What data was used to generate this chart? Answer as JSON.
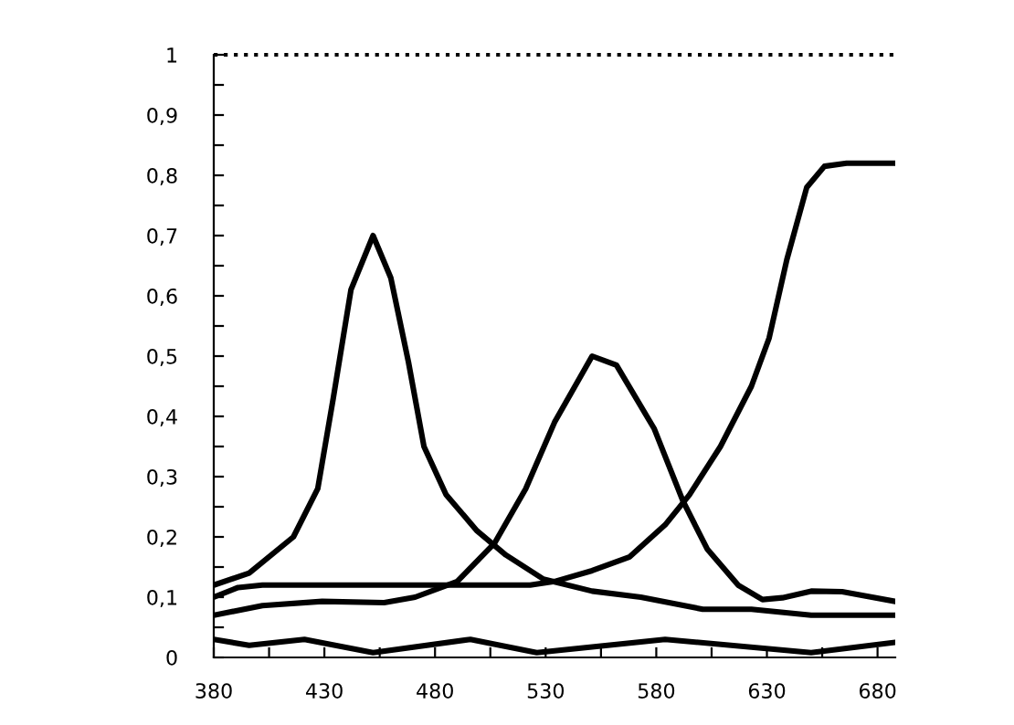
{
  "chart_data": {
    "type": "line",
    "xlim": [
      380,
      688
    ],
    "ylim": [
      0,
      1
    ],
    "xticks": [
      380,
      {
        "value": 405,
        "label": null
      },
      430,
      {
        "value": 455,
        "label": null
      },
      480,
      {
        "value": 505,
        "label": null
      },
      530,
      {
        "value": 555,
        "label": null
      },
      580,
      {
        "value": 605,
        "label": null
      },
      630,
      {
        "value": 655,
        "label": null
      },
      680
    ],
    "yticks": [
      {
        "value": 0,
        "label": "0"
      },
      {
        "value": 0.05,
        "label": null
      },
      {
        "value": 0.1,
        "label": "0,1"
      },
      {
        "value": 0.15,
        "label": null
      },
      {
        "value": 0.2,
        "label": "0,2"
      },
      {
        "value": 0.25,
        "label": null
      },
      {
        "value": 0.3,
        "label": "0,3"
      },
      {
        "value": 0.35,
        "label": null
      },
      {
        "value": 0.4,
        "label": "0,4"
      },
      {
        "value": 0.45,
        "label": null
      },
      {
        "value": 0.5,
        "label": "0,5"
      },
      {
        "value": 0.55,
        "label": null
      },
      {
        "value": 0.6,
        "label": "0,6"
      },
      {
        "value": 0.65,
        "label": null
      },
      {
        "value": 0.7,
        "label": "0,7"
      },
      {
        "value": 0.75,
        "label": null
      },
      {
        "value": 0.8,
        "label": "0,8"
      },
      {
        "value": 0.85,
        "label": null
      },
      {
        "value": 0.9,
        "label": "0,9"
      },
      {
        "value": 0.95,
        "label": null
      },
      {
        "value": 1,
        "label": "1"
      }
    ],
    "grid": false,
    "marker": "none",
    "line_style": "solid",
    "ref_lines": [
      {
        "axis": "y",
        "value": 1,
        "color": "#000000",
        "line_style": "dotted"
      }
    ],
    "series": [
      {
        "color": "#000000",
        "x": [
          380,
          396,
          416,
          427,
          434,
          442,
          452,
          460,
          468,
          475,
          485,
          499,
          512,
          529,
          551,
          573,
          601,
          623,
          650,
          688
        ],
        "values": [
          0.12,
          0.14,
          0.2,
          0.28,
          0.43,
          0.61,
          0.7,
          0.63,
          0.49,
          0.35,
          0.27,
          0.21,
          0.17,
          0.13,
          0.11,
          0.1,
          0.08,
          0.08,
          0.07,
          0.07
        ]
      },
      {
        "color": "#000000",
        "x": [
          380,
          402,
          429,
          457,
          471,
          490,
          507,
          521,
          534,
          551,
          562,
          579,
          592,
          603,
          617,
          628,
          637,
          650,
          664,
          688
        ],
        "values": [
          0.07,
          0.086,
          0.093,
          0.091,
          0.1,
          0.126,
          0.19,
          0.28,
          0.39,
          0.5,
          0.485,
          0.38,
          0.26,
          0.18,
          0.12,
          0.096,
          0.099,
          0.11,
          0.109,
          0.093
        ]
      },
      {
        "color": "#000000",
        "x": [
          380,
          391,
          402,
          457,
          512,
          523,
          534,
          551,
          568,
          584,
          595,
          609,
          623,
          631,
          639,
          648,
          656,
          666,
          688
        ],
        "values": [
          0.1,
          0.116,
          0.12,
          0.12,
          0.12,
          0.12,
          0.126,
          0.144,
          0.167,
          0.22,
          0.27,
          0.35,
          0.45,
          0.53,
          0.66,
          0.78,
          0.815,
          0.82,
          0.82
        ]
      },
      {
        "color": "#000000",
        "x": [
          380,
          396,
          421,
          452,
          496,
          526,
          584,
          650,
          688
        ],
        "values": [
          0.03,
          0.02,
          0.03,
          0.008,
          0.03,
          0.008,
          0.03,
          0.008,
          0.025
        ]
      }
    ]
  }
}
